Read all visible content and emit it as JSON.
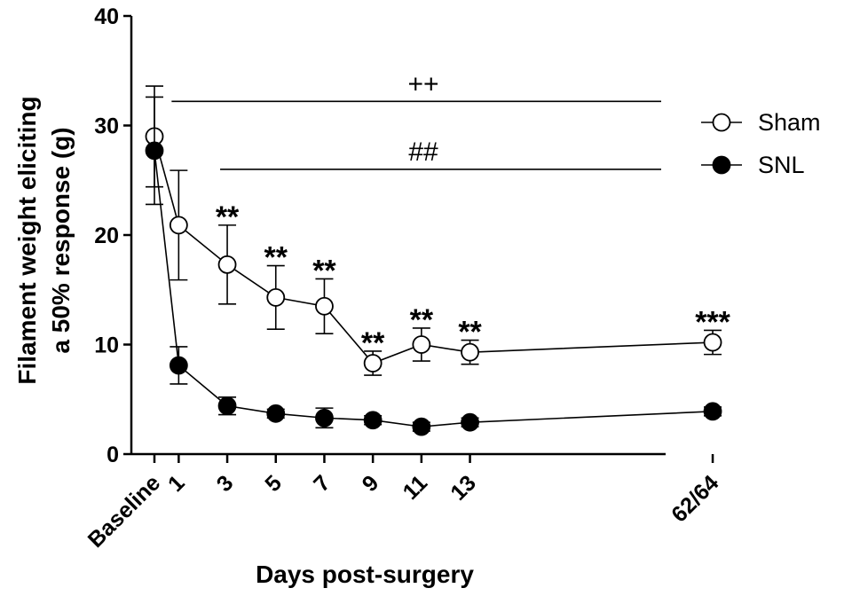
{
  "chart_data": {
    "type": "line",
    "xlabel": "Days post-surgery",
    "ylabel_lines": [
      "Filament weight eliciting",
      "a 50% response (g)"
    ],
    "ylim": [
      0,
      40
    ],
    "yticks": [
      0,
      10,
      20,
      30,
      40
    ],
    "x_positions": [
      0,
      1,
      3,
      5,
      7,
      9,
      11,
      13,
      23
    ],
    "categories": [
      "Baseline",
      "1",
      "3",
      "5",
      "7",
      "9",
      "11",
      "13",
      "62/64"
    ],
    "series": [
      {
        "name": "Sham",
        "marker": "open-circle",
        "values": [
          29.0,
          20.9,
          17.3,
          14.3,
          13.5,
          8.3,
          10.0,
          9.3,
          10.2
        ],
        "err": [
          4.6,
          5.0,
          3.6,
          2.9,
          2.5,
          1.1,
          1.5,
          1.1,
          1.1
        ],
        "significance": [
          "",
          "",
          "**",
          "**",
          "**",
          "**",
          "**",
          "**",
          "***"
        ]
      },
      {
        "name": "SNL",
        "marker": "filled-circle",
        "values": [
          27.7,
          8.1,
          4.4,
          3.7,
          3.3,
          3.1,
          2.5,
          2.9,
          3.9
        ],
        "err": [
          4.9,
          1.7,
          0.8,
          0.4,
          0.9,
          0.4,
          0.4,
          0.4,
          0.4
        ]
      }
    ],
    "annotations": [
      {
        "text": "++",
        "y": 32.2,
        "x_from": 1,
        "x_to": 23
      },
      {
        "text": "##",
        "y": 26.0,
        "x_from": 3,
        "x_to": 23
      }
    ],
    "legend_placement": "right",
    "grid": false
  }
}
